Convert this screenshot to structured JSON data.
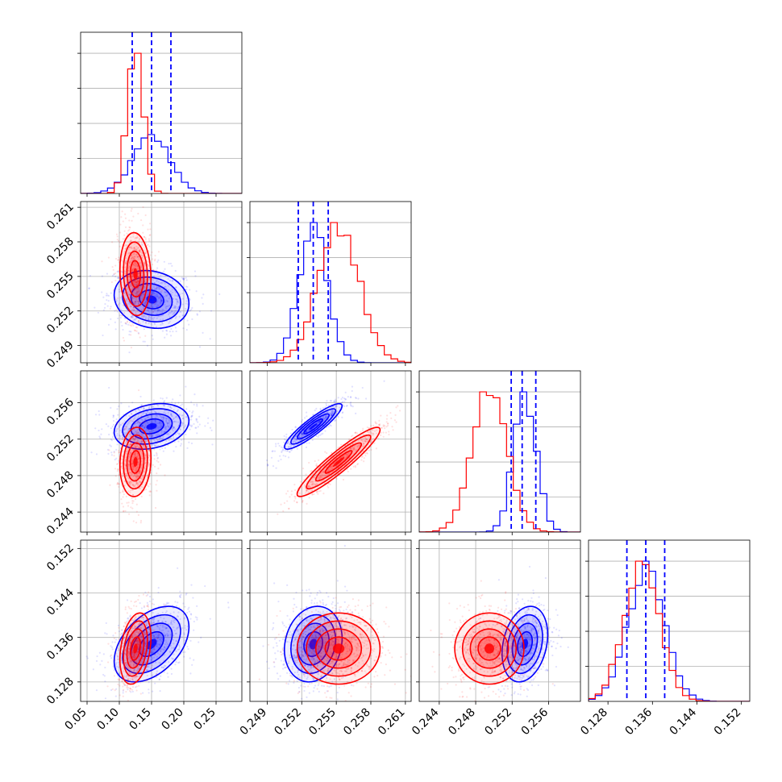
{
  "colors": {
    "blue": "#0000ff",
    "red": "#ff0000",
    "grid": "#b0b0b0"
  },
  "chart_data": {
    "type": "corner",
    "grid": true,
    "params": [
      {
        "range": [
          0.04,
          0.29
        ],
        "ticks": [
          0.05,
          0.1,
          0.15,
          0.2,
          0.25
        ],
        "tick_labels": [
          "0.05",
          "0.10",
          "0.15",
          "0.20",
          "0.25"
        ]
      },
      {
        "range": [
          0.2475,
          0.2615
        ],
        "ticks": [
          0.249,
          0.252,
          0.255,
          0.258,
          0.261
        ],
        "tick_labels": [
          "0.249",
          "0.252",
          "0.255",
          "0.258",
          "0.261"
        ]
      },
      {
        "range": [
          0.2418,
          0.2595
        ],
        "ticks": [
          0.244,
          0.248,
          0.252,
          0.256
        ],
        "tick_labels": [
          "0.244",
          "0.248",
          "0.252",
          "0.256"
        ]
      },
      {
        "range": [
          0.1245,
          0.1535
        ],
        "ticks": [
          0.128,
          0.136,
          0.144,
          0.152
        ],
        "tick_labels": [
          "0.128",
          "0.136",
          "0.144",
          "0.152"
        ]
      }
    ],
    "series": [
      {
        "color": "#0000ff",
        "mean": [
          0.15,
          0.253,
          0.2534,
          0.1348
        ],
        "std": [
          0.029,
          0.00125,
          0.00125,
          0.0034
        ],
        "correlations": [
          [
            1,
            -0.15,
            0.25,
            0.45
          ],
          [
            -0.15,
            1,
            0.9,
            0.15
          ],
          [
            0.25,
            0.9,
            1,
            0.25
          ],
          [
            0.45,
            0.15,
            0.25,
            1
          ]
        ],
        "quantile_lines": [
          [
            0.12,
            0.15,
            0.18
          ],
          [
            0.2517,
            0.253,
            0.2543
          ],
          [
            0.2519,
            0.2531,
            0.2546
          ],
          [
            0.1314,
            0.1348,
            0.1382
          ]
        ]
      },
      {
        "color": "#ff0000",
        "mean": [
          0.125,
          0.2552,
          0.2495,
          0.134
        ],
        "std": [
          0.012,
          0.0018,
          0.0019,
          0.0032
        ],
        "correlations": [
          [
            1,
            -0.1,
            0.1,
            0.3
          ],
          [
            -0.1,
            1,
            0.93,
            0.0
          ],
          [
            0.1,
            0.93,
            1,
            0.0
          ],
          [
            0.3,
            0.0,
            0.0,
            1
          ]
        ],
        "quantile_lines": []
      }
    ]
  }
}
